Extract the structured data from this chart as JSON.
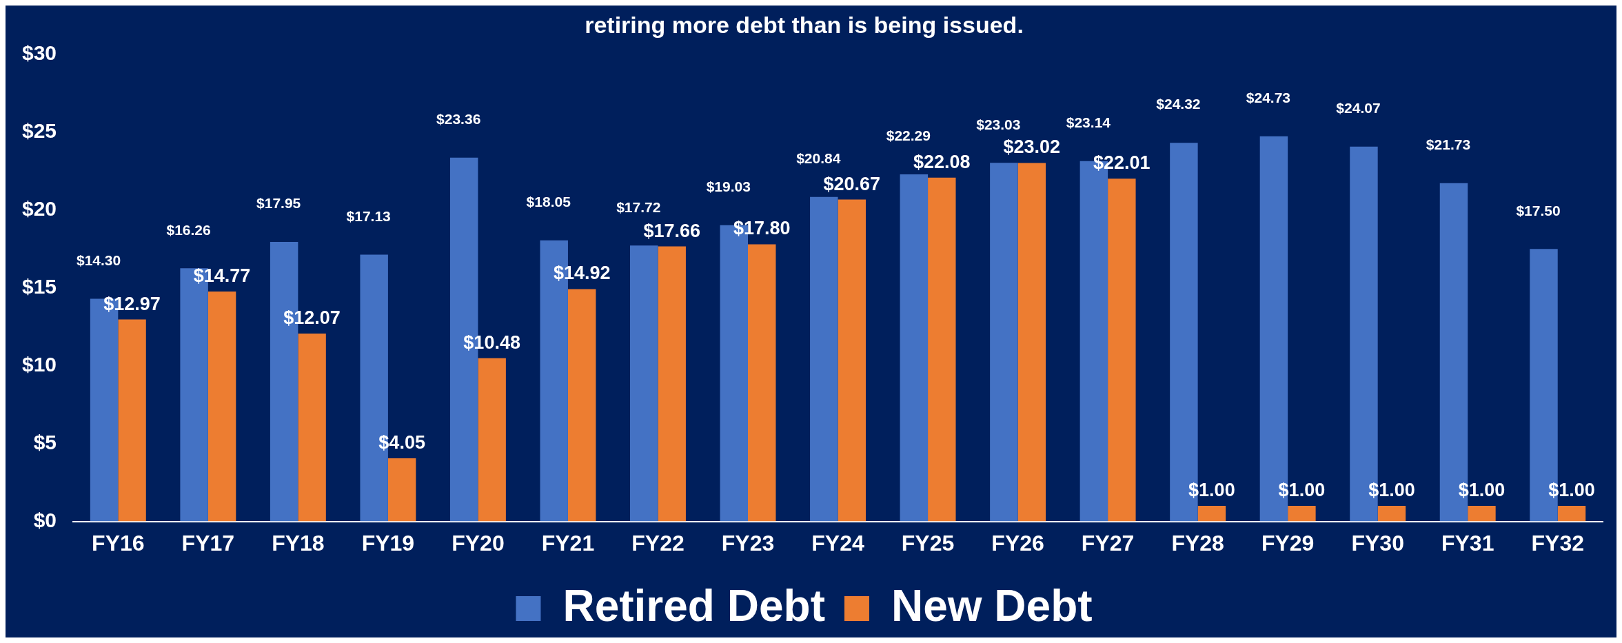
{
  "chart_data": {
    "type": "bar",
    "title": "retiring more debt than is being issued.",
    "categories": [
      "FY16",
      "FY17",
      "FY18",
      "FY19",
      "FY20",
      "FY21",
      "FY22",
      "FY23",
      "FY24",
      "FY25",
      "FY26",
      "FY27",
      "FY28",
      "FY29",
      "FY30",
      "FY31",
      "FY32"
    ],
    "series": [
      {
        "name": "Retired Debt",
        "color": "#4472c4",
        "values": [
          14.3,
          16.26,
          17.95,
          17.13,
          23.36,
          18.05,
          17.72,
          19.03,
          20.84,
          22.29,
          23.03,
          23.14,
          24.32,
          24.73,
          24.07,
          21.73,
          17.5
        ],
        "value_labels": [
          "$14.30",
          "$16.26",
          "$17.95",
          "$17.13",
          "$23.36",
          "$18.05",
          "$17.72",
          "$19.03",
          "$20.84",
          "$22.29",
          "$23.03",
          "$23.14",
          "$24.32",
          "$24.73",
          "$24.07",
          "$21.73",
          "$17.50"
        ]
      },
      {
        "name": "New Debt",
        "color": "#ed7d31",
        "values": [
          12.97,
          14.77,
          12.07,
          4.05,
          10.48,
          14.92,
          17.66,
          17.8,
          20.67,
          22.08,
          23.02,
          22.01,
          1.0,
          1.0,
          1.0,
          1.0,
          1.0
        ],
        "value_labels": [
          "$12.97",
          "$14.77",
          "$12.07",
          "$4.05",
          "$10.48",
          "$14.92",
          "$17.66",
          "$17.80",
          "$20.67",
          "$22.08",
          "$23.02",
          "$22.01",
          "$1.00",
          "$1.00",
          "$1.00",
          "$1.00",
          "$1.00"
        ]
      }
    ],
    "ylim": [
      0,
      30
    ],
    "yticks": [
      {
        "value": 0,
        "label": "$0"
      },
      {
        "value": 5,
        "label": "$5"
      },
      {
        "value": 10,
        "label": "$10"
      },
      {
        "value": 15,
        "label": "$15"
      },
      {
        "value": 20,
        "label": "$20"
      },
      {
        "value": 25,
        "label": "$25"
      },
      {
        "value": 30,
        "label": "$30"
      }
    ],
    "grid": false,
    "legend": "bottom"
  }
}
